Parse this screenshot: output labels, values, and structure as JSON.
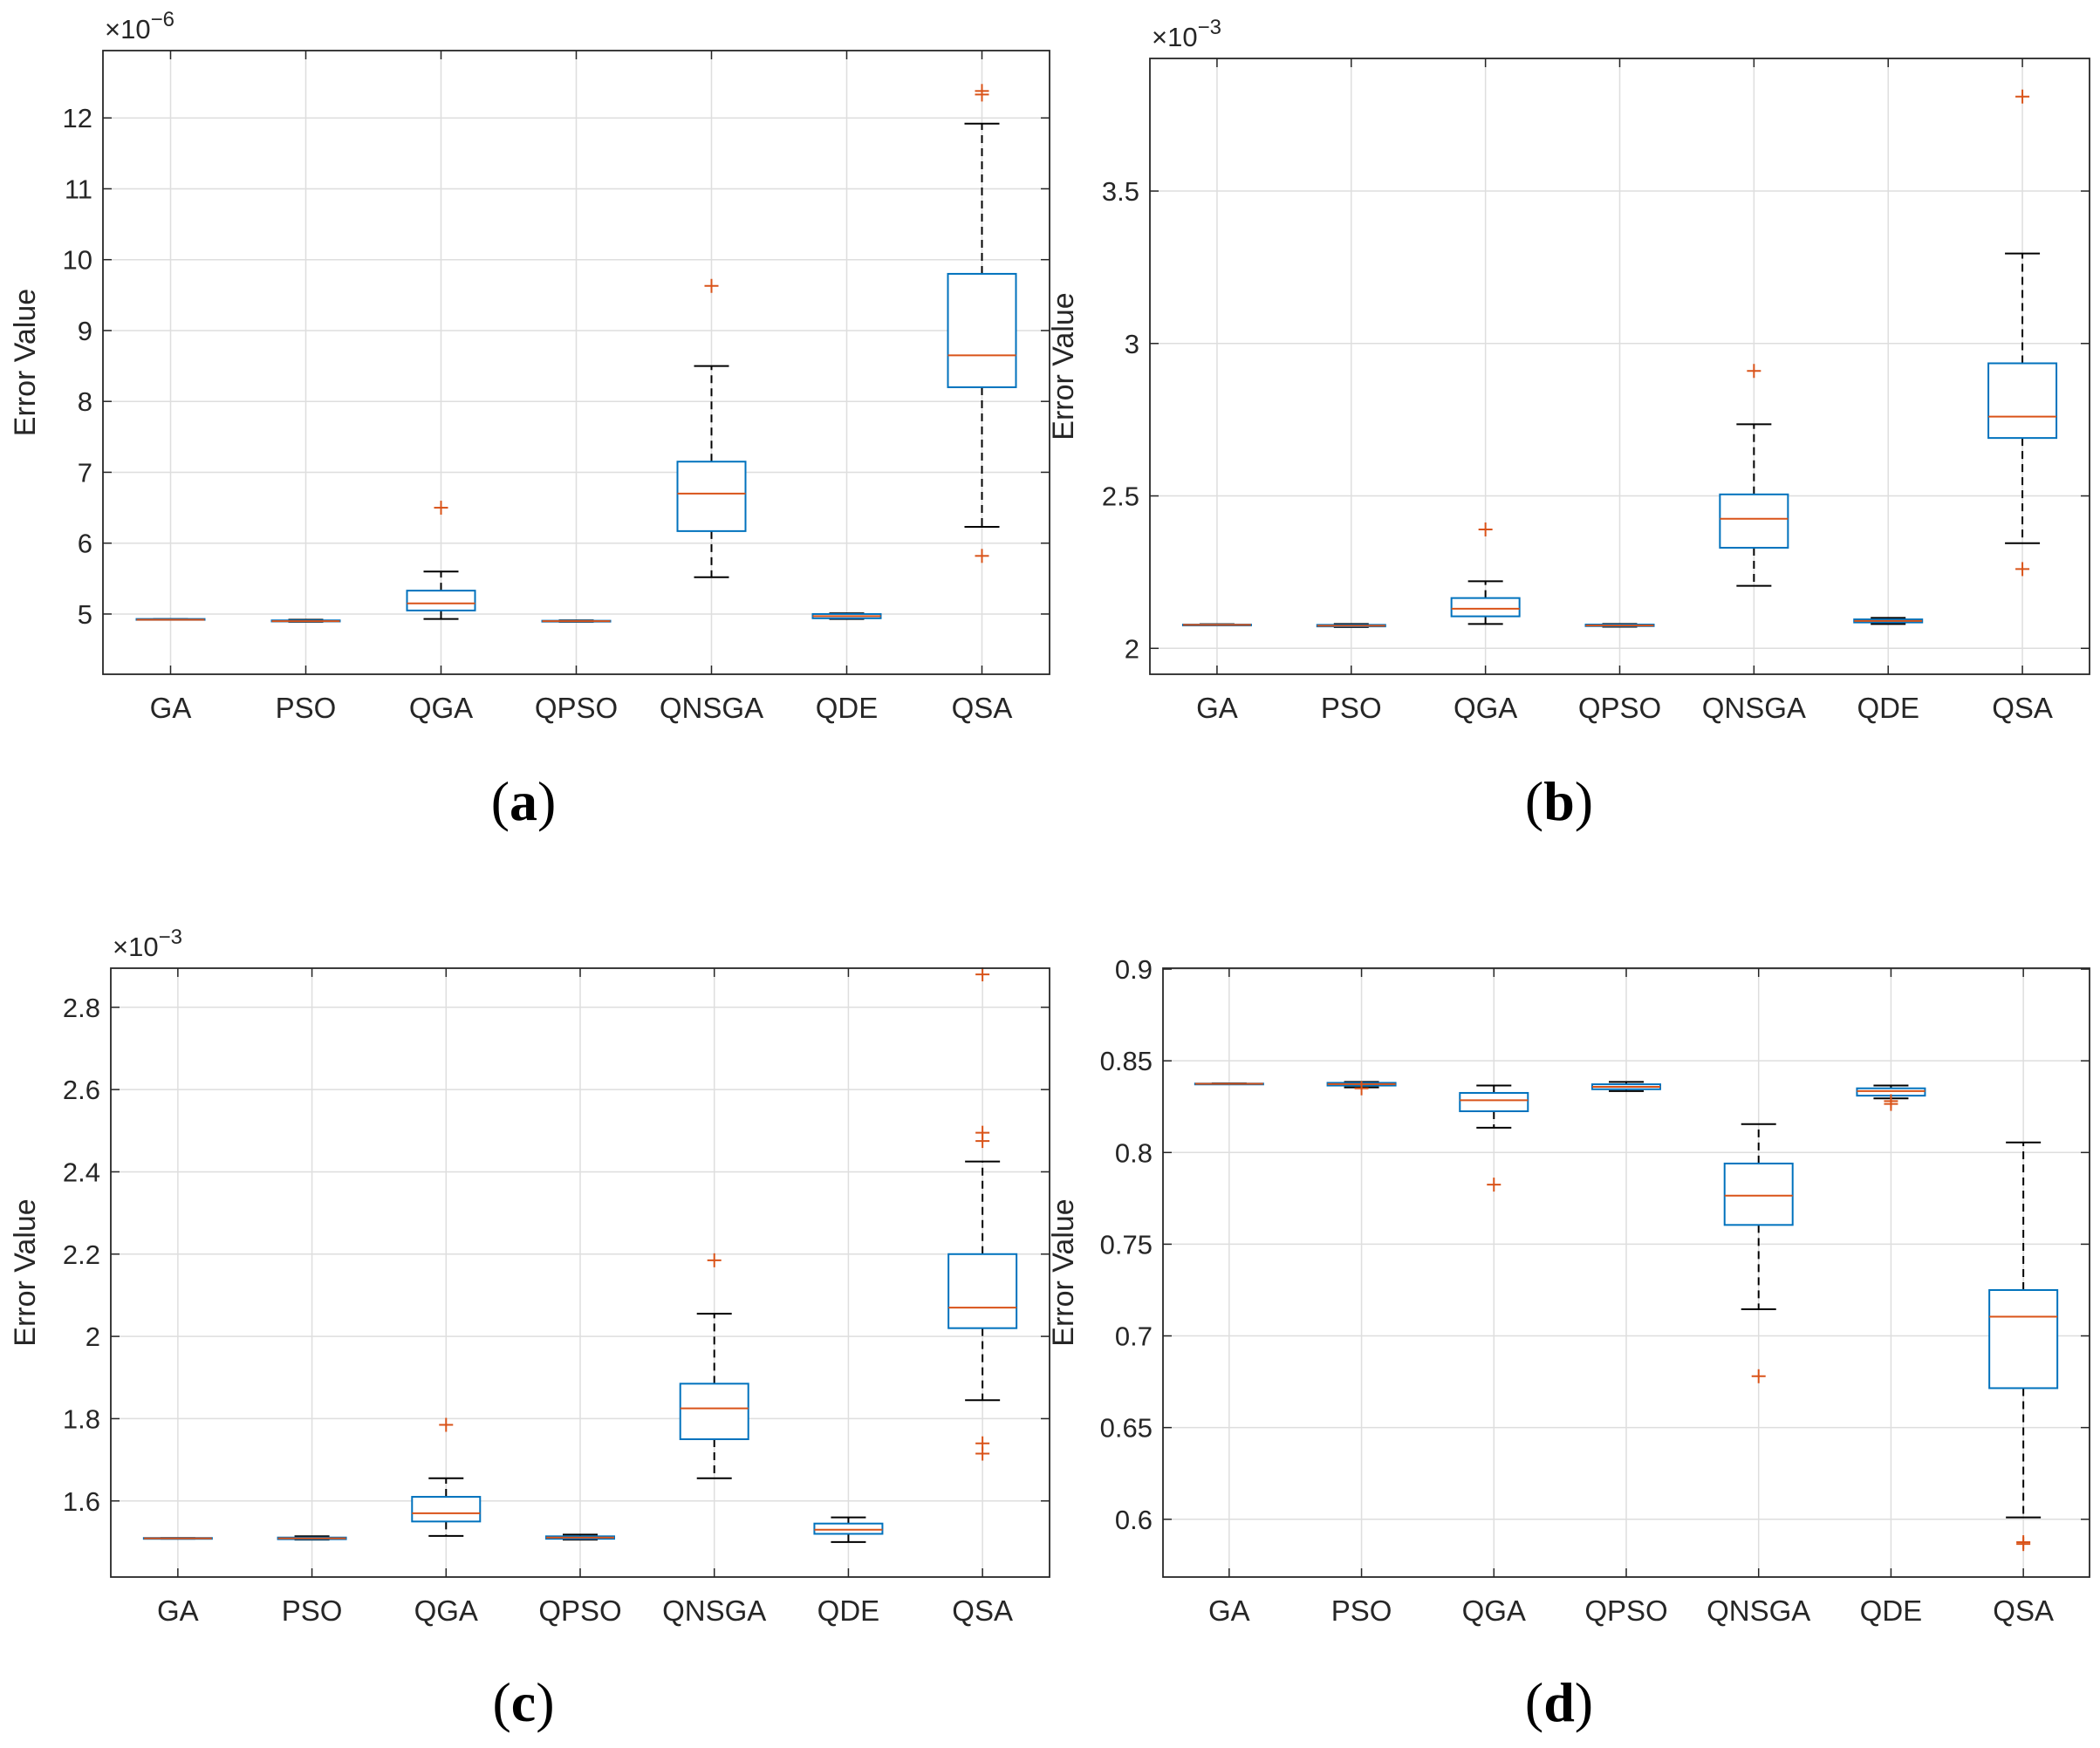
{
  "figure": {
    "box_color": "#0072BD",
    "median_color": "#D95319",
    "outlier_color": "#D95319",
    "whisker_color": "#000000",
    "grid_color": "#DEDEDE"
  },
  "chart_data": [
    {
      "type": "box",
      "panel": "(a)",
      "caption_letter": "a",
      "exponent_label": "×10",
      "exponent_power": "−6",
      "ylabel": "Error Value",
      "ylim": [
        4.15,
        12.95
      ],
      "yticks": [
        5,
        6,
        7,
        8,
        9,
        10,
        11,
        12
      ],
      "ytick_labels": [
        "5",
        "6",
        "7",
        "8",
        "9",
        "10",
        "11",
        "12"
      ],
      "categories": [
        "GA",
        "PSO",
        "QGA",
        "QPSO",
        "QNSGA",
        "QDE",
        "QSA"
      ],
      "boxes": [
        {
          "label": "GA",
          "whisker_low": 4.92,
          "q1": 4.92,
          "median": 4.92,
          "q3": 4.93,
          "whisker_high": 4.93,
          "outliers": []
        },
        {
          "label": "PSO",
          "whisker_low": 4.89,
          "q1": 4.895,
          "median": 4.9,
          "q3": 4.91,
          "whisker_high": 4.92,
          "outliers": []
        },
        {
          "label": "QGA",
          "whisker_low": 4.93,
          "q1": 5.05,
          "median": 5.15,
          "q3": 5.33,
          "whisker_high": 5.6,
          "outliers": [
            6.5
          ]
        },
        {
          "label": "QPSO",
          "whisker_low": 4.89,
          "q1": 4.895,
          "median": 4.9,
          "q3": 4.905,
          "whisker_high": 4.91,
          "outliers": []
        },
        {
          "label": "QNSGA",
          "whisker_low": 5.52,
          "q1": 6.17,
          "median": 6.7,
          "q3": 7.15,
          "whisker_high": 8.5,
          "outliers": [
            9.63
          ]
        },
        {
          "label": "QDE",
          "whisker_low": 4.93,
          "q1": 4.94,
          "median": 4.97,
          "q3": 5.0,
          "whisker_high": 5.01,
          "outliers": []
        },
        {
          "label": "QSA",
          "whisker_low": 6.23,
          "q1": 8.2,
          "median": 8.65,
          "q3": 9.8,
          "whisker_high": 11.92,
          "outliers": [
            12.33,
            12.38,
            5.82
          ]
        }
      ]
    },
    {
      "type": "box",
      "panel": "(b)",
      "caption_letter": "b",
      "exponent_label": "×10",
      "exponent_power": "−3",
      "ylabel": "Error Value",
      "ylim": [
        1.915,
        3.935
      ],
      "yticks": [
        2,
        2.5,
        3,
        3.5
      ],
      "ytick_labels": [
        "2",
        "2.5",
        "3",
        "3.5"
      ],
      "categories": [
        "GA",
        "PSO",
        "QGA",
        "QPSO",
        "QNSGA",
        "QDE",
        "QSA"
      ],
      "boxes": [
        {
          "label": "GA",
          "whisker_low": 2.076,
          "q1": 2.077,
          "median": 2.077,
          "q3": 2.078,
          "whisker_high": 2.079,
          "outliers": []
        },
        {
          "label": "PSO",
          "whisker_low": 2.07,
          "q1": 2.072,
          "median": 2.074,
          "q3": 2.077,
          "whisker_high": 2.08,
          "outliers": []
        },
        {
          "label": "QGA",
          "whisker_low": 2.08,
          "q1": 2.105,
          "median": 2.13,
          "q3": 2.165,
          "whisker_high": 2.22,
          "outliers": [
            2.39
          ]
        },
        {
          "label": "QPSO",
          "whisker_low": 2.071,
          "q1": 2.073,
          "median": 2.075,
          "q3": 2.078,
          "whisker_high": 2.08,
          "outliers": []
        },
        {
          "label": "QNSGA",
          "whisker_low": 2.205,
          "q1": 2.33,
          "median": 2.425,
          "q3": 2.505,
          "whisker_high": 2.735,
          "outliers": [
            2.91
          ]
        },
        {
          "label": "QDE",
          "whisker_low": 2.08,
          "q1": 2.085,
          "median": 2.09,
          "q3": 2.095,
          "whisker_high": 2.1,
          "outliers": []
        },
        {
          "label": "QSA",
          "whisker_low": 2.345,
          "q1": 2.69,
          "median": 2.76,
          "q3": 2.935,
          "whisker_high": 3.295,
          "outliers": [
            3.81,
            2.26
          ]
        }
      ]
    },
    {
      "type": "box",
      "panel": "(c)",
      "caption_letter": "c",
      "exponent_label": "×10",
      "exponent_power": "−3",
      "ylabel": "Error Value",
      "ylim": [
        1.415,
        2.895
      ],
      "yticks": [
        1.6,
        1.8,
        2,
        2.2,
        2.4,
        2.6,
        2.8
      ],
      "ytick_labels": [
        "1.6",
        "1.8",
        "2",
        "2.2",
        "2.4",
        "2.6",
        "2.8"
      ],
      "categories": [
        "GA",
        "PSO",
        "QGA",
        "QPSO",
        "QNSGA",
        "QDE",
        "QSA"
      ],
      "boxes": [
        {
          "label": "GA",
          "whisker_low": 1.508,
          "q1": 1.509,
          "median": 1.509,
          "q3": 1.51,
          "whisker_high": 1.51,
          "outliers": []
        },
        {
          "label": "PSO",
          "whisker_low": 1.506,
          "q1": 1.507,
          "median": 1.509,
          "q3": 1.511,
          "whisker_high": 1.514,
          "outliers": []
        },
        {
          "label": "QGA",
          "whisker_low": 1.515,
          "q1": 1.55,
          "median": 1.57,
          "q3": 1.61,
          "whisker_high": 1.655,
          "outliers": [
            1.785
          ]
        },
        {
          "label": "QPSO",
          "whisker_low": 1.506,
          "q1": 1.508,
          "median": 1.511,
          "q3": 1.514,
          "whisker_high": 1.518,
          "outliers": []
        },
        {
          "label": "QNSGA",
          "whisker_low": 1.655,
          "q1": 1.75,
          "median": 1.825,
          "q3": 1.885,
          "whisker_high": 2.055,
          "outliers": [
            2.185
          ]
        },
        {
          "label": "QDE",
          "whisker_low": 1.5,
          "q1": 1.52,
          "median": 1.53,
          "q3": 1.545,
          "whisker_high": 1.56,
          "outliers": []
        },
        {
          "label": "QSA",
          "whisker_low": 1.845,
          "q1": 2.02,
          "median": 2.07,
          "q3": 2.2,
          "whisker_high": 2.425,
          "outliers": [
            2.88,
            2.495,
            2.475,
            1.74,
            1.715
          ]
        }
      ]
    },
    {
      "type": "box",
      "panel": "(d)",
      "caption_letter": "d",
      "exponent_label": "",
      "exponent_power": "",
      "ylabel": "Error Value",
      "ylim": [
        0.5685,
        0.9005
      ],
      "yticks": [
        0.6,
        0.65,
        0.7,
        0.75,
        0.8,
        0.85,
        0.9
      ],
      "ytick_labels": [
        "0.6",
        "0.65",
        "0.7",
        "0.75",
        "0.8",
        "0.85",
        "0.9"
      ],
      "categories": [
        "GA",
        "PSO",
        "QGA",
        "QPSO",
        "QNSGA",
        "QDE",
        "QSA"
      ],
      "boxes": [
        {
          "label": "GA",
          "whisker_low": 0.8373,
          "q1": 0.8374,
          "median": 0.8375,
          "q3": 0.8376,
          "whisker_high": 0.8377,
          "outliers": []
        },
        {
          "label": "PSO",
          "whisker_low": 0.8355,
          "q1": 0.8365,
          "median": 0.8373,
          "q3": 0.838,
          "whisker_high": 0.8385,
          "outliers": [
            0.835
          ]
        },
        {
          "label": "QGA",
          "whisker_low": 0.8135,
          "q1": 0.8225,
          "median": 0.8285,
          "q3": 0.8325,
          "whisker_high": 0.8365,
          "outliers": [
            0.7825
          ]
        },
        {
          "label": "QPSO",
          "whisker_low": 0.8335,
          "q1": 0.8345,
          "median": 0.8358,
          "q3": 0.8372,
          "whisker_high": 0.8385,
          "outliers": []
        },
        {
          "label": "QNSGA",
          "whisker_low": 0.7145,
          "q1": 0.7605,
          "median": 0.7765,
          "q3": 0.794,
          "whisker_high": 0.8155,
          "outliers": [
            0.678
          ]
        },
        {
          "label": "QDE",
          "whisker_low": 0.8295,
          "q1": 0.831,
          "median": 0.8335,
          "q3": 0.835,
          "whisker_high": 0.8365,
          "outliers": [
            0.828,
            0.8265
          ]
        },
        {
          "label": "QSA",
          "whisker_low": 0.601,
          "q1": 0.6715,
          "median": 0.7105,
          "q3": 0.725,
          "whisker_high": 0.8055,
          "outliers": [
            0.5875,
            0.5865
          ]
        }
      ]
    }
  ]
}
